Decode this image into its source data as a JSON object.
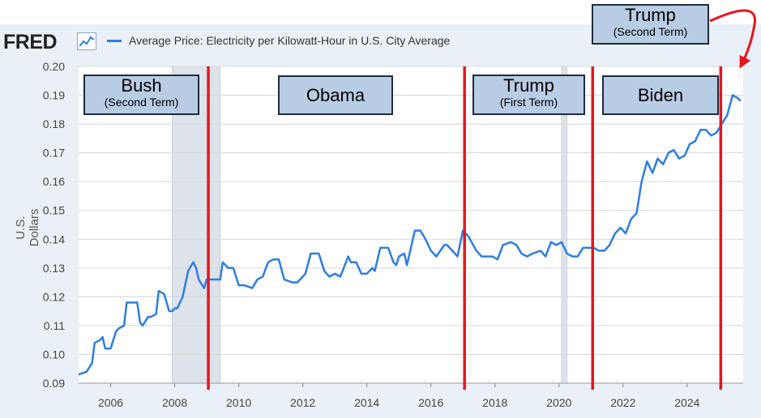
{
  "header": {
    "logo_text": "FRED",
    "logo_icon": "chart-line-icon",
    "series_title": "Average Price: Electricity per Kilowatt-Hour in U.S. City Average"
  },
  "colors": {
    "line": "#2d7ee0",
    "marker": "#e8141c",
    "recession": "#dde3ea",
    "box_fill": "#b8cce4",
    "background": "#eaf0f8"
  },
  "annotations": [
    {
      "name": "bush",
      "label": "Bush",
      "sublabel": "(Second Term)"
    },
    {
      "name": "obama",
      "label": "Obama",
      "sublabel": ""
    },
    {
      "name": "trump-first",
      "label": "Trump",
      "sublabel": "(First Term)"
    },
    {
      "name": "biden",
      "label": "Biden",
      "sublabel": ""
    },
    {
      "name": "trump-second",
      "label": "Trump",
      "sublabel": "(Second Term)"
    }
  ],
  "chart_data": {
    "type": "line",
    "title": "Average Price: Electricity per Kilowatt-Hour in U.S. City Average",
    "xlabel": "",
    "ylabel": "U.S. Dollars",
    "xlim": [
      2005.0,
      2025.75
    ],
    "ylim": [
      0.09,
      0.2
    ],
    "x_ticks": [
      2006,
      2008,
      2010,
      2012,
      2014,
      2016,
      2018,
      2020,
      2022,
      2024
    ],
    "y_ticks": [
      0.09,
      0.1,
      0.11,
      0.12,
      0.13,
      0.14,
      0.15,
      0.16,
      0.17,
      0.18,
      0.19,
      0.2
    ],
    "y_tick_labels": [
      "0.09",
      "0.10",
      "0.11",
      "0.12",
      "0.13",
      "0.14",
      "0.15",
      "0.16",
      "0.17",
      "0.18",
      "0.19",
      "0.20"
    ],
    "recessions": [
      [
        2007.92,
        2009.42
      ],
      [
        2020.08,
        2020.25
      ]
    ],
    "transition_markers": [
      2009.05,
      2017.05,
      2021.05,
      2025.05
    ],
    "series": [
      {
        "name": "Average Price: Electricity per Kilowatt-Hour in U.S. City Average",
        "x": [
          2005.0,
          2005.25,
          2005.42,
          2005.5,
          2005.67,
          2005.75,
          2005.83,
          2006.0,
          2006.17,
          2006.25,
          2006.42,
          2006.5,
          2006.67,
          2006.83,
          2006.92,
          2007.0,
          2007.17,
          2007.25,
          2007.42,
          2007.5,
          2007.67,
          2007.83,
          2007.92,
          2008.0,
          2008.08,
          2008.25,
          2008.42,
          2008.58,
          2008.67,
          2008.75,
          2008.92,
          2009.0,
          2009.17,
          2009.42,
          2009.5,
          2009.67,
          2009.83,
          2010.0,
          2010.17,
          2010.42,
          2010.58,
          2010.75,
          2010.92,
          2011.08,
          2011.25,
          2011.42,
          2011.67,
          2011.83,
          2012.08,
          2012.25,
          2012.42,
          2012.5,
          2012.67,
          2012.83,
          2013.0,
          2013.17,
          2013.42,
          2013.5,
          2013.67,
          2013.83,
          2014.0,
          2014.17,
          2014.25,
          2014.42,
          2014.5,
          2014.67,
          2014.83,
          2014.92,
          2015.0,
          2015.17,
          2015.25,
          2015.5,
          2015.67,
          2015.83,
          2016.0,
          2016.17,
          2016.42,
          2016.5,
          2016.67,
          2016.83,
          2017.0,
          2017.17,
          2017.42,
          2017.58,
          2017.75,
          2017.92,
          2018.08,
          2018.25,
          2018.5,
          2018.67,
          2018.83,
          2019.0,
          2019.17,
          2019.42,
          2019.58,
          2019.75,
          2019.92,
          2020.08,
          2020.25,
          2020.42,
          2020.58,
          2020.75,
          2020.92,
          2021.08,
          2021.25,
          2021.42,
          2021.58,
          2021.75,
          2021.92,
          2022.08,
          2022.25,
          2022.42,
          2022.58,
          2022.75,
          2022.92,
          2023.08,
          2023.25,
          2023.42,
          2023.58,
          2023.75,
          2023.92,
          2024.08,
          2024.25,
          2024.42,
          2024.58,
          2024.75,
          2024.92,
          2025.08,
          2025.25,
          2025.42,
          2025.58,
          2025.67
        ],
        "y": [
          0.093,
          0.094,
          0.097,
          0.104,
          0.105,
          0.106,
          0.102,
          0.102,
          0.108,
          0.109,
          0.11,
          0.118,
          0.118,
          0.118,
          0.111,
          0.11,
          0.113,
          0.113,
          0.114,
          0.122,
          0.121,
          0.115,
          0.115,
          0.116,
          0.116,
          0.12,
          0.129,
          0.132,
          0.13,
          0.126,
          0.123,
          0.126,
          0.126,
          0.126,
          0.132,
          0.13,
          0.13,
          0.124,
          0.124,
          0.123,
          0.126,
          0.127,
          0.132,
          0.133,
          0.133,
          0.126,
          0.125,
          0.125,
          0.128,
          0.135,
          0.135,
          0.135,
          0.129,
          0.127,
          0.128,
          0.127,
          0.134,
          0.132,
          0.132,
          0.128,
          0.128,
          0.13,
          0.129,
          0.137,
          0.137,
          0.137,
          0.132,
          0.131,
          0.134,
          0.135,
          0.131,
          0.143,
          0.143,
          0.14,
          0.136,
          0.134,
          0.138,
          0.138,
          0.136,
          0.134,
          0.143,
          0.141,
          0.136,
          0.134,
          0.134,
          0.134,
          0.133,
          0.138,
          0.139,
          0.138,
          0.135,
          0.134,
          0.135,
          0.136,
          0.134,
          0.139,
          0.138,
          0.139,
          0.135,
          0.134,
          0.134,
          0.137,
          0.137,
          0.137,
          0.136,
          0.136,
          0.138,
          0.142,
          0.144,
          0.142,
          0.147,
          0.149,
          0.16,
          0.167,
          0.163,
          0.168,
          0.166,
          0.17,
          0.171,
          0.168,
          0.169,
          0.173,
          0.174,
          0.178,
          0.178,
          0.176,
          0.177,
          0.18,
          0.183,
          0.19,
          0.189,
          0.188
        ]
      }
    ]
  }
}
